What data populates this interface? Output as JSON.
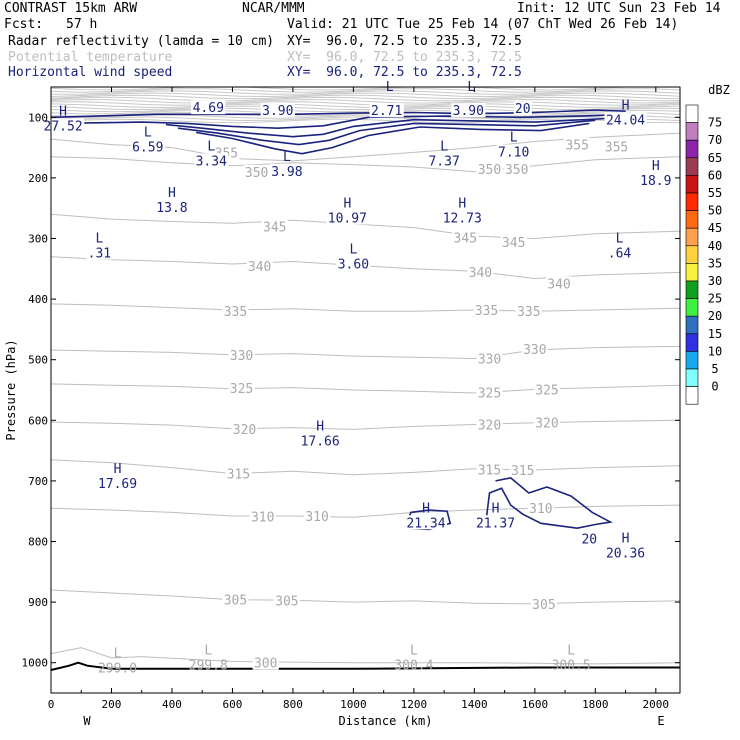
{
  "header": {
    "model": "CONTRAST 15km ARW",
    "center": "NCAR/MMM",
    "init": "Init: 12 UTC Sun 23 Feb 14",
    "fcst_label": "Fcst:",
    "fcst_value": "57 h",
    "valid": "Valid: 21 UTC Tue 25 Feb 14 (07 ChT Wed 26 Feb 14)",
    "fields": [
      {
        "name": "Radar reflectivity (lamda = 10 cm)",
        "xy": "XY=  96.0, 72.5 to 235.3, 72.5",
        "color": "#000000"
      },
      {
        "name": "Potential temperature",
        "xy": "XY=  96.0, 72.5 to 235.3, 72.5",
        "color": "#bdbdbd"
      },
      {
        "name": "Horizontal wind speed",
        "xy": "XY=  96.0, 72.5 to 235.3, 72.5",
        "color": "#1a237e"
      }
    ]
  },
  "chart_data": {
    "type": "contour cross-section",
    "xlabel": "Distance (km)",
    "ylabel": "Pressure (hPa)",
    "xlim": [
      0,
      2080
    ],
    "ylim": [
      1050,
      50
    ],
    "x_ticks": [
      0,
      200,
      400,
      600,
      800,
      1000,
      1200,
      1400,
      1600,
      1800,
      2000
    ],
    "y_ticks": [
      100,
      200,
      300,
      400,
      500,
      600,
      700,
      800,
      900,
      1000
    ],
    "end_labels": {
      "left": "W",
      "right": "E"
    },
    "colorbar": {
      "title": "dBZ",
      "levels": [
        "75",
        "70",
        "65",
        "60",
        "55",
        "50",
        "45",
        "40",
        "35",
        "30",
        "25",
        "20",
        "15",
        "10",
        "5",
        "0"
      ],
      "colors": [
        "#ffffff",
        "#c080c0",
        "#8e24aa",
        "#9c3c52",
        "#c81414",
        "#ff2a00",
        "#ff6a10",
        "#ffa050",
        "#ffd040",
        "#f8f040",
        "#10a020",
        "#40f040",
        "#3070c0",
        "#3030e0",
        "#18a8f0",
        "#80ffff",
        "#ffffff"
      ]
    },
    "theta_labels": [
      {
        "text": "355",
        "x": 580,
        "p": 158
      },
      {
        "text": "355",
        "x": 1740,
        "p": 145
      },
      {
        "text": "355",
        "x": 1870,
        "p": 148
      },
      {
        "text": "350",
        "x": 680,
        "p": 190
      },
      {
        "text": "350",
        "x": 1450,
        "p": 185
      },
      {
        "text": "350",
        "x": 1540,
        "p": 185
      },
      {
        "text": "345",
        "x": 740,
        "p": 280
      },
      {
        "text": "345",
        "x": 1370,
        "p": 298
      },
      {
        "text": "345",
        "x": 1530,
        "p": 306
      },
      {
        "text": "340",
        "x": 690,
        "p": 345
      },
      {
        "text": "340",
        "x": 1420,
        "p": 355
      },
      {
        "text": "340",
        "x": 1680,
        "p": 374
      },
      {
        "text": "335",
        "x": 610,
        "p": 420
      },
      {
        "text": "335",
        "x": 1440,
        "p": 418
      },
      {
        "text": "335",
        "x": 1580,
        "p": 420
      },
      {
        "text": "330",
        "x": 630,
        "p": 492
      },
      {
        "text": "330",
        "x": 1450,
        "p": 498
      },
      {
        "text": "330",
        "x": 1600,
        "p": 482
      },
      {
        "text": "325",
        "x": 630,
        "p": 547
      },
      {
        "text": "325",
        "x": 1450,
        "p": 554
      },
      {
        "text": "325",
        "x": 1640,
        "p": 549
      },
      {
        "text": "320",
        "x": 640,
        "p": 614
      },
      {
        "text": "320",
        "x": 1450,
        "p": 607
      },
      {
        "text": "320",
        "x": 1640,
        "p": 604
      },
      {
        "text": "315",
        "x": 620,
        "p": 688
      },
      {
        "text": "315",
        "x": 1450,
        "p": 681
      },
      {
        "text": "315",
        "x": 1560,
        "p": 682
      },
      {
        "text": "310",
        "x": 700,
        "p": 759
      },
      {
        "text": "310",
        "x": 880,
        "p": 758
      },
      {
        "text": "310",
        "x": 1620,
        "p": 745
      },
      {
        "text": "305",
        "x": 610,
        "p": 896
      },
      {
        "text": "305",
        "x": 780,
        "p": 897
      },
      {
        "text": "305",
        "x": 1630,
        "p": 903
      },
      {
        "text": "300",
        "x": 710,
        "p": 1000
      }
    ],
    "theta_extrema": [
      {
        "mark": "L",
        "value": "299.0",
        "x": 220,
        "p": 1005
      },
      {
        "mark": "L",
        "value": "299.8",
        "x": 520,
        "p": 1000
      },
      {
        "mark": "L",
        "value": "300.4",
        "x": 1200,
        "p": 1000
      },
      {
        "mark": "L",
        "value": "300.5",
        "x": 1720,
        "p": 1000
      }
    ],
    "wind_extrema": [
      {
        "mark": "H",
        "value": "27.52",
        "x": 40,
        "p": 110
      },
      {
        "mark": "",
        "value": "4.69",
        "x": 520,
        "p": 80
      },
      {
        "mark": "",
        "value": "3.90",
        "x": 750,
        "p": 85
      },
      {
        "mark": "L",
        "value": "",
        "x": 1120,
        "p": 70
      },
      {
        "mark": "",
        "value": "2.71",
        "x": 1110,
        "p": 85
      },
      {
        "mark": "L",
        "value": "",
        "x": 1390,
        "p": 70
      },
      {
        "mark": "",
        "value": "3.90",
        "x": 1380,
        "p": 85
      },
      {
        "mark": "H",
        "value": "24.04",
        "x": 1900,
        "p": 100
      },
      {
        "mark": "L",
        "value": "6.59",
        "x": 320,
        "p": 145
      },
      {
        "mark": "L",
        "value": "3.34",
        "x": 530,
        "p": 168
      },
      {
        "mark": "L",
        "value": "3.98",
        "x": 780,
        "p": 185
      },
      {
        "mark": "L",
        "value": "7.37",
        "x": 1300,
        "p": 168
      },
      {
        "mark": "L",
        "value": "7.10",
        "x": 1530,
        "p": 153
      },
      {
        "mark": "H",
        "value": "18.9",
        "x": 2000,
        "p": 200
      },
      {
        "mark": "H",
        "value": "13.8",
        "x": 400,
        "p": 245
      },
      {
        "mark": "H",
        "value": "10.97",
        "x": 980,
        "p": 262
      },
      {
        "mark": "H",
        "value": "12.73",
        "x": 1360,
        "p": 262
      },
      {
        "mark": "L",
        "value": ".31",
        "x": 160,
        "p": 320
      },
      {
        "mark": "L",
        "value": "3.60",
        "x": 1000,
        "p": 338
      },
      {
        "mark": "L",
        "value": ".64",
        "x": 1880,
        "p": 320
      },
      {
        "mark": "H",
        "value": "17.66",
        "x": 890,
        "p": 630
      },
      {
        "mark": "H",
        "value": "17.69",
        "x": 220,
        "p": 700
      },
      {
        "mark": "H",
        "value": "21.34",
        "x": 1240,
        "p": 765
      },
      {
        "mark": "H",
        "value": "21.37",
        "x": 1470,
        "p": 765
      },
      {
        "mark": "H",
        "value": "20.36",
        "x": 1900,
        "p": 815
      }
    ],
    "wind_contour_labels": [
      {
        "text": "20",
        "x": 1560,
        "p": 85
      },
      {
        "text": "20",
        "x": 1780,
        "p": 795
      }
    ],
    "wind_contours": [
      [
        [
          0,
          100
        ],
        [
          150,
          98
        ],
        [
          350,
          95
        ],
        [
          600,
          95
        ],
        [
          800,
          95
        ],
        [
          1000,
          93
        ],
        [
          1200,
          92
        ],
        [
          1400,
          94
        ],
        [
          1600,
          92
        ],
        [
          1800,
          88
        ],
        [
          1900,
          90
        ]
      ],
      [
        [
          10,
          110
        ],
        [
          300,
          108
        ],
        [
          450,
          110
        ],
        [
          600,
          115
        ],
        [
          750,
          118
        ],
        [
          900,
          114
        ],
        [
          1050,
          100
        ],
        [
          1300,
          98
        ],
        [
          1550,
          100
        ],
        [
          1750,
          98
        ],
        [
          1860,
          96
        ]
      ],
      [
        [
          380,
          112
        ],
        [
          500,
          118
        ],
        [
          650,
          126
        ],
        [
          800,
          132
        ],
        [
          900,
          128
        ],
        [
          1000,
          115
        ],
        [
          1200,
          104
        ],
        [
          1400,
          106
        ],
        [
          1600,
          108
        ],
        [
          1840,
          102
        ]
      ],
      [
        [
          420,
          118
        ],
        [
          550,
          126
        ],
        [
          700,
          138
        ],
        [
          820,
          145
        ],
        [
          920,
          138
        ],
        [
          1020,
          122
        ],
        [
          1200,
          110
        ],
        [
          1400,
          112
        ],
        [
          1600,
          114
        ],
        [
          1800,
          105
        ]
      ],
      [
        [
          480,
          125
        ],
        [
          600,
          135
        ],
        [
          740,
          152
        ],
        [
          830,
          160
        ],
        [
          930,
          150
        ],
        [
          1050,
          130
        ],
        [
          1220,
          116
        ],
        [
          1420,
          120
        ],
        [
          1620,
          122
        ],
        [
          1780,
          110
        ]
      ],
      [
        [
          1180,
          765
        ],
        [
          1190,
          752
        ],
        [
          1250,
          748
        ],
        [
          1310,
          750
        ],
        [
          1320,
          770
        ],
        [
          1250,
          780
        ],
        [
          1180,
          778
        ]
      ],
      [
        [
          1440,
          760
        ],
        [
          1450,
          720
        ],
        [
          1490,
          712
        ],
        [
          1520,
          740
        ],
        [
          1560,
          755
        ],
        [
          1620,
          770
        ],
        [
          1740,
          778
        ],
        [
          1800,
          772
        ],
        [
          1850,
          768
        ],
        [
          1790,
          752
        ],
        [
          1720,
          725
        ],
        [
          1640,
          710
        ],
        [
          1580,
          720
        ],
        [
          1520,
          695
        ],
        [
          1470,
          700
        ]
      ]
    ],
    "theta_contours": [
      [
        [
          0,
          136
        ],
        [
          200,
          145
        ],
        [
          400,
          150
        ],
        [
          600,
          168
        ],
        [
          800,
          172
        ],
        [
          1000,
          165
        ],
        [
          1200,
          158
        ],
        [
          1400,
          150
        ],
        [
          1600,
          140
        ],
        [
          1800,
          133
        ],
        [
          2080,
          126
        ]
      ],
      [
        [
          0,
          165
        ],
        [
          200,
          168
        ],
        [
          400,
          175
        ],
        [
          600,
          180
        ],
        [
          800,
          175
        ],
        [
          1000,
          178
        ],
        [
          1200,
          182
        ],
        [
          1400,
          190
        ],
        [
          1600,
          180
        ],
        [
          1800,
          170
        ],
        [
          2080,
          165
        ]
      ],
      [
        [
          0,
          260
        ],
        [
          200,
          268
        ],
        [
          400,
          272
        ],
        [
          600,
          275
        ],
        [
          800,
          270
        ],
        [
          1000,
          276
        ],
        [
          1200,
          282
        ],
        [
          1400,
          296
        ],
        [
          1600,
          300
        ],
        [
          1800,
          292
        ],
        [
          2080,
          288
        ]
      ],
      [
        [
          0,
          330
        ],
        [
          200,
          335
        ],
        [
          400,
          338
        ],
        [
          600,
          342
        ],
        [
          800,
          338
        ],
        [
          1000,
          344
        ],
        [
          1200,
          350
        ],
        [
          1400,
          354
        ],
        [
          1600,
          366
        ],
        [
          1800,
          360
        ],
        [
          2080,
          356
        ]
      ],
      [
        [
          0,
          408
        ],
        [
          200,
          410
        ],
        [
          400,
          414
        ],
        [
          600,
          418
        ],
        [
          800,
          416
        ],
        [
          1000,
          420
        ],
        [
          1200,
          420
        ],
        [
          1400,
          418
        ],
        [
          1600,
          420
        ],
        [
          1800,
          418
        ],
        [
          2080,
          415
        ]
      ],
      [
        [
          0,
          484
        ],
        [
          200,
          486
        ],
        [
          400,
          488
        ],
        [
          600,
          492
        ],
        [
          800,
          490
        ],
        [
          1000,
          494
        ],
        [
          1200,
          496
        ],
        [
          1400,
          498
        ],
        [
          1600,
          484
        ],
        [
          1800,
          480
        ],
        [
          2080,
          478
        ]
      ],
      [
        [
          0,
          540
        ],
        [
          200,
          542
        ],
        [
          400,
          544
        ],
        [
          600,
          548
        ],
        [
          800,
          546
        ],
        [
          1000,
          550
        ],
        [
          1200,
          552
        ],
        [
          1400,
          555
        ],
        [
          1600,
          549
        ],
        [
          1800,
          546
        ],
        [
          2080,
          542
        ]
      ],
      [
        [
          0,
          603
        ],
        [
          200,
          605
        ],
        [
          400,
          608
        ],
        [
          600,
          614
        ],
        [
          800,
          612
        ],
        [
          1000,
          615
        ],
        [
          1200,
          610
        ],
        [
          1400,
          607
        ],
        [
          1600,
          604
        ],
        [
          1800,
          602
        ],
        [
          2080,
          600
        ]
      ],
      [
        [
          0,
          665
        ],
        [
          200,
          670
        ],
        [
          400,
          678
        ],
        [
          600,
          688
        ],
        [
          800,
          684
        ],
        [
          1000,
          690
        ],
        [
          1200,
          686
        ],
        [
          1400,
          680
        ],
        [
          1600,
          682
        ],
        [
          1800,
          678
        ],
        [
          2080,
          675
        ]
      ],
      [
        [
          0,
          745
        ],
        [
          200,
          748
        ],
        [
          400,
          752
        ],
        [
          600,
          758
        ],
        [
          800,
          758
        ],
        [
          1000,
          760
        ],
        [
          1200,
          752
        ],
        [
          1400,
          748
        ],
        [
          1600,
          745
        ],
        [
          1800,
          742
        ],
        [
          2080,
          740
        ]
      ],
      [
        [
          0,
          880
        ],
        [
          200,
          885
        ],
        [
          400,
          890
        ],
        [
          600,
          896
        ],
        [
          800,
          897
        ],
        [
          1000,
          900
        ],
        [
          1200,
          898
        ],
        [
          1400,
          902
        ],
        [
          1600,
          903
        ],
        [
          1800,
          900
        ],
        [
          2080,
          898
        ]
      ],
      [
        [
          0,
          985
        ],
        [
          100,
          975
        ],
        [
          200,
          992
        ],
        [
          300,
          990
        ],
        [
          600,
          998
        ],
        [
          1000,
          1000
        ],
        [
          1400,
          1000
        ],
        [
          1800,
          1002
        ],
        [
          2080,
          1000
        ]
      ]
    ],
    "surface": [
      [
        0,
        1012
      ],
      [
        60,
        1005
      ],
      [
        90,
        1000
      ],
      [
        120,
        1005
      ],
      [
        200,
        1010
      ],
      [
        1000,
        1010
      ],
      [
        1600,
        1008
      ],
      [
        2080,
        1008
      ]
    ]
  }
}
